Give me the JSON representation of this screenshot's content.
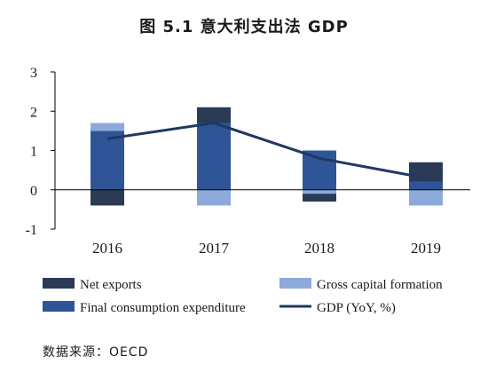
{
  "chart_data": {
    "type": "bar",
    "title": "图 5.1 意大利支出法 GDP",
    "categories": [
      "2016",
      "2017",
      "2018",
      "2019"
    ],
    "series": [
      {
        "name": "Net exports",
        "type": "bar",
        "color": "#2b3a55",
        "values": [
          -0.4,
          0.4,
          -0.2,
          0.5
        ]
      },
      {
        "name": "Gross capital formation",
        "type": "bar",
        "color": "#8eaadb",
        "values": [
          0.2,
          -0.4,
          -0.1,
          -0.4
        ]
      },
      {
        "name": "Final consumption expenditure",
        "type": "bar",
        "color": "#2f5597",
        "values": [
          1.5,
          1.7,
          1.0,
          0.2
        ]
      },
      {
        "name": "GDP (YoY, %)",
        "type": "line",
        "color": "#1f3864",
        "values": [
          1.3,
          1.7,
          0.8,
          0.3
        ]
      }
    ],
    "ylim": [
      -1,
      3
    ],
    "yticks": [
      "3",
      "2",
      "1",
      "0",
      "-1"
    ],
    "legend_position": "bottom",
    "grid": false
  },
  "source": "数据来源：OECD"
}
